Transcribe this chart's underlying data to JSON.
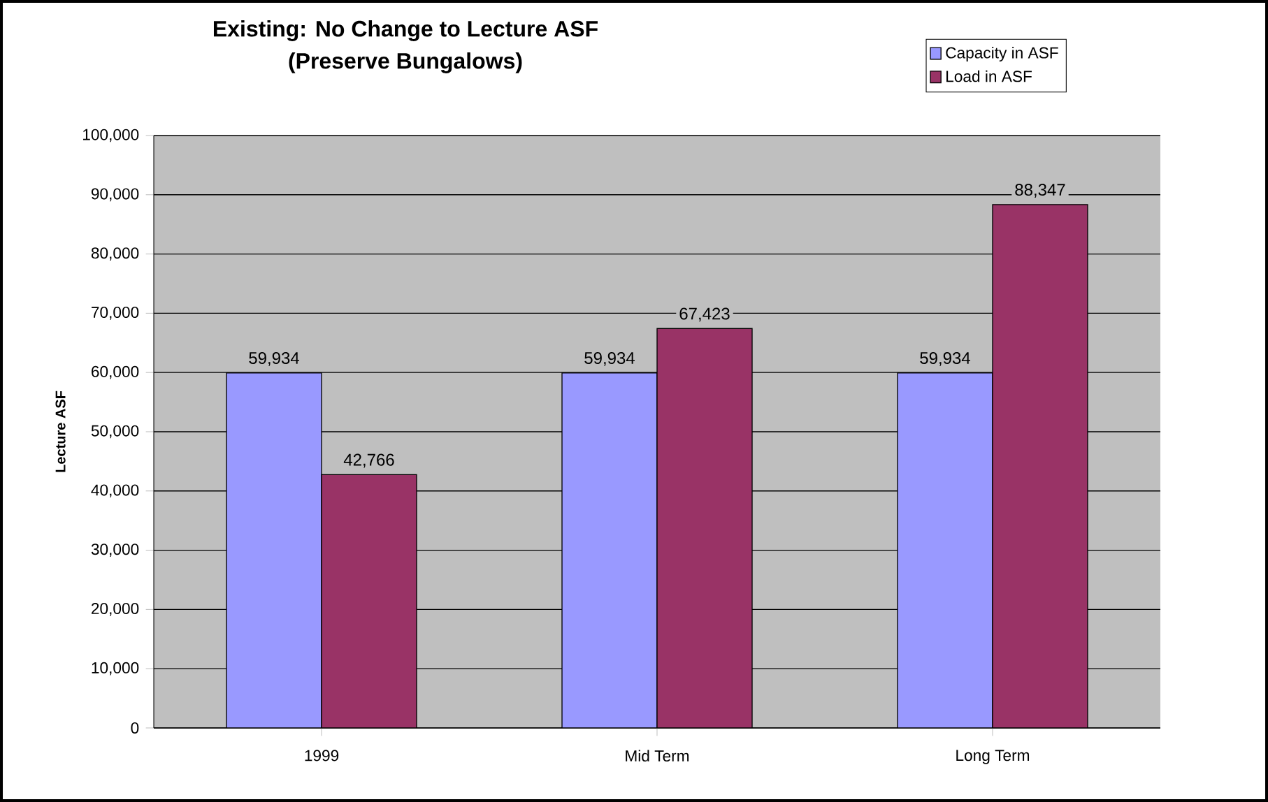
{
  "chart_data": {
    "type": "bar",
    "title": "Existing:  No Change to Lecture ASF",
    "subtitle": "(Preserve Bungalows)",
    "ylabel": "Lecture ASF",
    "categories": [
      "1999",
      "Mid Term",
      "Long Term"
    ],
    "series": [
      {
        "name": "Capacity in ASF",
        "color": "#9999ff",
        "values": [
          59934,
          59934,
          59934
        ],
        "value_labels": [
          "59,934",
          "59,934",
          "59,934"
        ]
      },
      {
        "name": "Load in ASF",
        "color": "#993366",
        "values": [
          42766,
          67423,
          88347
        ],
        "value_labels": [
          "42,766",
          "67,423",
          "88,347"
        ]
      }
    ],
    "ylim": [
      0,
      100000
    ],
    "yticks": [
      {
        "value": 0,
        "label": "0"
      },
      {
        "value": 10000,
        "label": "10,000"
      },
      {
        "value": 20000,
        "label": "20,000"
      },
      {
        "value": 30000,
        "label": "30,000"
      },
      {
        "value": 40000,
        "label": "40,000"
      },
      {
        "value": 50000,
        "label": "50,000"
      },
      {
        "value": 60000,
        "label": "60,000"
      },
      {
        "value": 70000,
        "label": "70,000"
      },
      {
        "value": 80000,
        "label": "80,000"
      },
      {
        "value": 90000,
        "label": "90,000"
      },
      {
        "value": 100000,
        "label": "100,000"
      }
    ],
    "grid": "y",
    "legend": "top right"
  }
}
